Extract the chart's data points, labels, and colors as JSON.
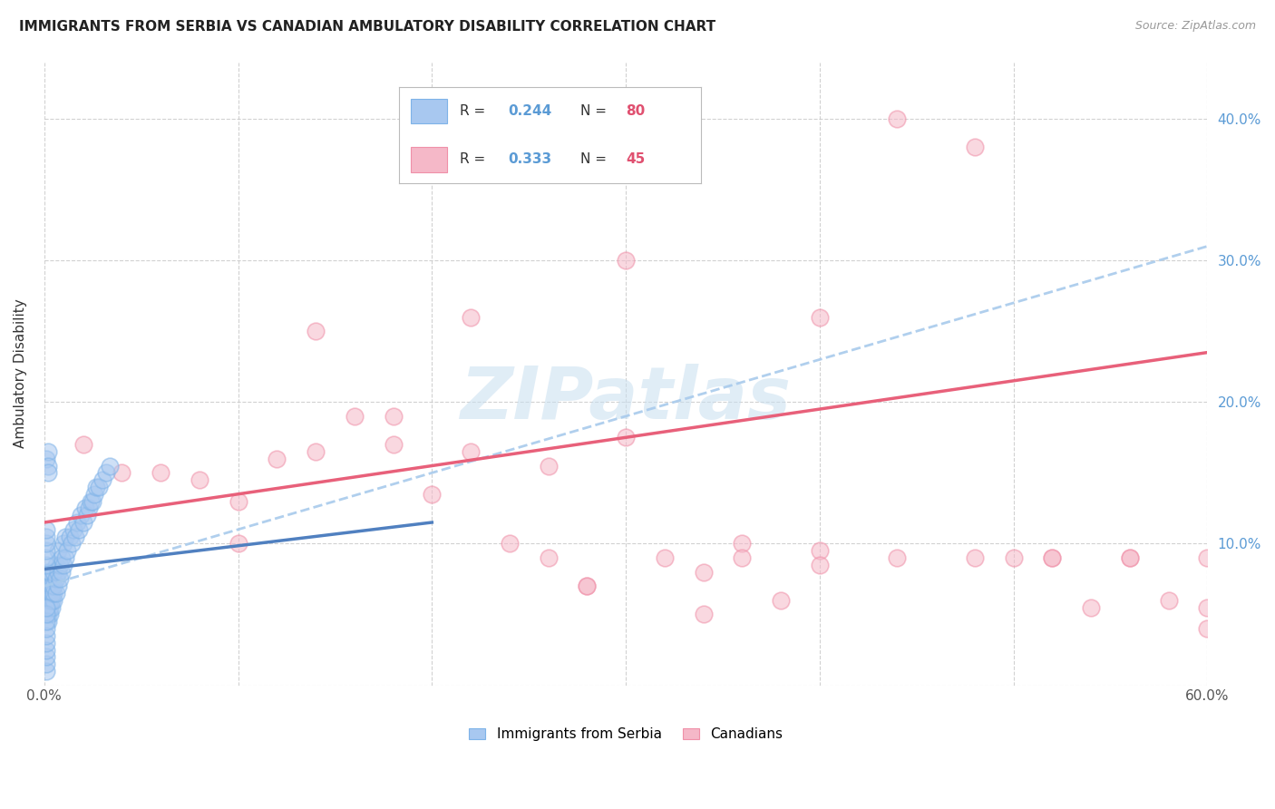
{
  "title": "IMMIGRANTS FROM SERBIA VS CANADIAN AMBULATORY DISABILITY CORRELATION CHART",
  "source": "Source: ZipAtlas.com",
  "ylabel": "Ambulatory Disability",
  "x_min": 0.0,
  "x_max": 0.6,
  "y_min": 0.0,
  "y_max": 0.44,
  "color_blue": "#A8C8F0",
  "color_blue_edge": "#7EB3E8",
  "color_pink": "#F5B8C8",
  "color_pink_edge": "#F090A8",
  "color_trendline_blue_dashed": "#A8CAEC",
  "color_trendline_pink_solid": "#E8607A",
  "color_trendline_blue_solid": "#5080C0",
  "watermark_color": "#C8DFF0",
  "serbia_x": [
    0.001,
    0.001,
    0.001,
    0.001,
    0.001,
    0.002,
    0.002,
    0.002,
    0.002,
    0.002,
    0.002,
    0.002,
    0.003,
    0.003,
    0.003,
    0.003,
    0.003,
    0.003,
    0.004,
    0.004,
    0.004,
    0.004,
    0.005,
    0.005,
    0.005,
    0.005,
    0.006,
    0.006,
    0.006,
    0.007,
    0.007,
    0.007,
    0.008,
    0.008,
    0.009,
    0.009,
    0.01,
    0.01,
    0.011,
    0.011,
    0.012,
    0.013,
    0.014,
    0.015,
    0.016,
    0.017,
    0.018,
    0.019,
    0.02,
    0.021,
    0.022,
    0.023,
    0.024,
    0.025,
    0.026,
    0.027,
    0.028,
    0.03,
    0.032,
    0.034,
    0.001,
    0.001,
    0.001,
    0.001,
    0.001,
    0.001,
    0.001,
    0.001,
    0.001,
    0.001,
    0.001,
    0.001,
    0.001,
    0.001,
    0.001,
    0.001,
    0.001,
    0.002,
    0.002,
    0.002
  ],
  "serbia_y": [
    0.06,
    0.065,
    0.07,
    0.075,
    0.08,
    0.045,
    0.05,
    0.055,
    0.06,
    0.065,
    0.07,
    0.075,
    0.05,
    0.055,
    0.06,
    0.065,
    0.07,
    0.08,
    0.055,
    0.06,
    0.065,
    0.07,
    0.06,
    0.065,
    0.07,
    0.08,
    0.065,
    0.075,
    0.085,
    0.07,
    0.08,
    0.095,
    0.075,
    0.085,
    0.08,
    0.09,
    0.085,
    0.1,
    0.09,
    0.105,
    0.095,
    0.105,
    0.1,
    0.11,
    0.105,
    0.115,
    0.11,
    0.12,
    0.115,
    0.125,
    0.12,
    0.125,
    0.13,
    0.13,
    0.135,
    0.14,
    0.14,
    0.145,
    0.15,
    0.155,
    0.01,
    0.015,
    0.02,
    0.025,
    0.03,
    0.035,
    0.04,
    0.045,
    0.05,
    0.055,
    0.085,
    0.09,
    0.095,
    0.1,
    0.105,
    0.11,
    0.16,
    0.165,
    0.155,
    0.15
  ],
  "canadian_x": [
    0.04,
    0.14,
    0.18,
    0.22,
    0.28,
    0.3,
    0.34,
    0.36,
    0.4,
    0.4,
    0.44,
    0.48,
    0.54,
    0.58,
    0.6,
    0.1,
    0.14,
    0.18,
    0.22,
    0.26,
    0.3,
    0.34,
    0.38,
    0.02,
    0.06,
    0.08,
    0.1,
    0.12,
    0.16,
    0.2,
    0.24,
    0.26,
    0.28,
    0.32,
    0.36,
    0.4,
    0.44,
    0.48,
    0.52,
    0.56,
    0.6,
    0.5,
    0.52,
    0.56,
    0.6
  ],
  "canadian_y": [
    0.15,
    0.25,
    0.19,
    0.26,
    0.07,
    0.3,
    0.05,
    0.1,
    0.26,
    0.095,
    0.4,
    0.38,
    0.055,
    0.06,
    0.04,
    0.13,
    0.165,
    0.17,
    0.165,
    0.155,
    0.175,
    0.08,
    0.06,
    0.17,
    0.15,
    0.145,
    0.1,
    0.16,
    0.19,
    0.135,
    0.1,
    0.09,
    0.07,
    0.09,
    0.09,
    0.085,
    0.09,
    0.09,
    0.09,
    0.09,
    0.055,
    0.09,
    0.09,
    0.09,
    0.09
  ],
  "trendline_blue_dashed_x0": 0.0,
  "trendline_blue_dashed_y0": 0.07,
  "trendline_blue_dashed_x1": 0.6,
  "trendline_blue_dashed_y1": 0.31,
  "trendline_pink_x0": 0.0,
  "trendline_pink_y0": 0.115,
  "trendline_pink_x1": 0.6,
  "trendline_pink_y1": 0.235,
  "trendline_blue_solid_x0": 0.0,
  "trendline_blue_solid_y0": 0.082,
  "trendline_blue_solid_x1": 0.2,
  "trendline_blue_solid_y1": 0.115
}
